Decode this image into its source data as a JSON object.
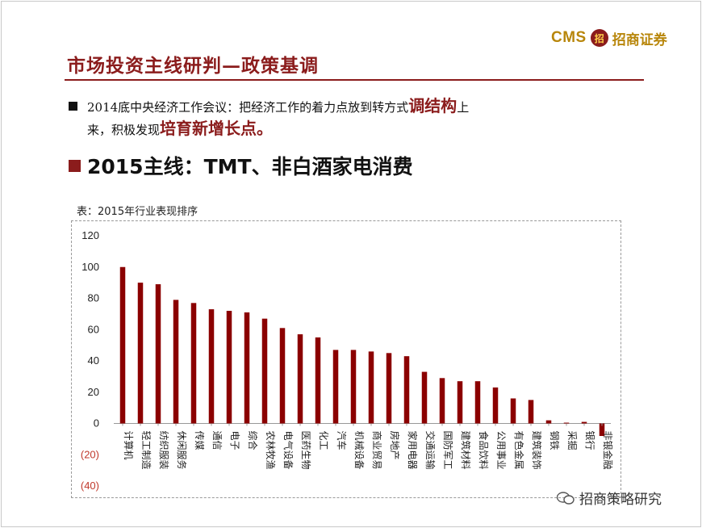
{
  "logo": {
    "brand": "CMS",
    "seal": "招",
    "name": "招商证券"
  },
  "slide": {
    "title": "市场投资主线研判—政策基调",
    "bullet1": {
      "part1": "2014底中央经济工作会议：把经济工作的着力点放到转方式",
      "highlight1": "调结构",
      "part2": "上",
      "part3": "来，积极发现",
      "highlight2": "培育新增长点",
      "part4": "。"
    },
    "bullet2": "2015主线：TMT、非白酒家电消费",
    "caption": "表：2015年行业表现排序"
  },
  "watermark": "招商策略研究",
  "colors": {
    "accent": "#8b1c1c",
    "negative_tick": "#c0392b",
    "brand_gold": "#b8860b"
  },
  "chart_data": {
    "type": "bar",
    "title": "",
    "xlabel": "",
    "ylabel": "",
    "ylim": [
      -40,
      120
    ],
    "y_ticks": [
      "120",
      "100",
      "80",
      "60",
      "40",
      "20",
      "0",
      "(20)",
      "(40)"
    ],
    "grid": false,
    "categories": [
      "计算机",
      "轻工制造",
      "纺织服装",
      "休闲服务",
      "传媒",
      "通信",
      "电子",
      "综合",
      "农林牧渔",
      "电气设备",
      "医药生物",
      "化工",
      "汽车",
      "机械设备",
      "商业贸易",
      "房地产",
      "家用电器",
      "交通运输",
      "国防军工",
      "建筑材料",
      "食品饮料",
      "公用事业",
      "有色金属",
      "建筑装饰",
      "钢铁",
      "采掘",
      "银行",
      "非银金融"
    ],
    "values": [
      100,
      90,
      89,
      79,
      77,
      73,
      72,
      71,
      67,
      61,
      57,
      55,
      47,
      47,
      46,
      45,
      43,
      33,
      29,
      27,
      27,
      23,
      16,
      15,
      2,
      0.5,
      1,
      -8
    ],
    "bar_color": "#8b0000"
  }
}
